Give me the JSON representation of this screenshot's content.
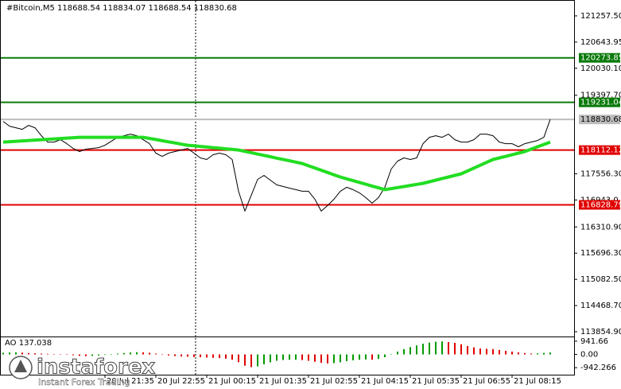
{
  "chart_data": {
    "type": "line",
    "title": "#Bitcoin,M5  118688.54 118834.07 118688.54 118830.68",
    "categories": [
      null,
      null,
      null,
      null,
      null,
      null,
      null,
      null,
      null,
      null,
      null,
      null,
      null,
      null,
      null,
      null,
      "20 Jul 21:35",
      null,
      null,
      null,
      null,
      null,
      null,
      null,
      "20 Jul 22:55",
      null,
      null,
      null,
      null,
      null,
      null,
      null,
      "21 Jul 00:15",
      null,
      null,
      null,
      null,
      null,
      null,
      null,
      "21 Jul 01:35",
      null,
      null,
      null,
      null,
      null,
      null,
      null,
      "21 Jul 02:55",
      null,
      null,
      null,
      null,
      null,
      null,
      null,
      "21 Jul 04:15",
      null,
      null,
      null,
      null,
      null,
      null,
      null,
      "21 Jul 05:35",
      null,
      null,
      null,
      null,
      null,
      null,
      null,
      "21 Jul 06:55",
      null,
      null,
      null,
      null,
      null,
      null,
      null,
      "21 Jul 08:15",
      null,
      null,
      null,
      null,
      null,
      null
    ],
    "series": [
      {
        "color": "#000000",
        "values": [
          118784,
          118672,
          118635,
          118598,
          118691,
          118635,
          118449,
          118300,
          118300,
          118356,
          118263,
          118151,
          118077,
          118133,
          118151,
          118170,
          118226,
          118319,
          118412,
          118449,
          118486,
          118449,
          118356,
          118263,
          118040,
          117965,
          118040,
          118077,
          118114,
          118151,
          118040,
          117928,
          117891,
          118003,
          118040,
          118003,
          117891,
          117147,
          116682,
          117054,
          117426,
          117519,
          117407,
          117296,
          117259,
          117221,
          117184,
          117147,
          117147,
          116961,
          116682,
          116812,
          116961,
          117147,
          117240,
          117184,
          117110,
          116998,
          116868,
          116998,
          117240,
          117668,
          117854,
          117928,
          117891,
          117928,
          118263,
          118412,
          118449,
          118412,
          118486,
          118356,
          118300,
          118300,
          118356,
          118486,
          118486,
          118449,
          118300,
          118263,
          118263,
          118189,
          118263,
          118300,
          118337,
          118412,
          118830.68
        ]
      },
      {
        "color": "#22dd22",
        "values": [
          118300,
          118309,
          118319,
          118328,
          118337,
          118347,
          118356,
          118365,
          118375,
          118384,
          118393,
          118403,
          118412,
          118412,
          118412,
          118412,
          118412,
          118412,
          118412,
          118412,
          118412,
          118412,
          118412,
          118385,
          118359,
          118332,
          118305,
          118279,
          118252,
          118226,
          118212,
          118198,
          118184,
          118170,
          118156,
          118142,
          118128,
          118114,
          118082,
          118051,
          118019,
          117988,
          117956,
          117924,
          117893,
          117861,
          117830,
          117798,
          117745,
          117692,
          117639,
          117587,
          117534,
          117481,
          117439,
          117396,
          117354,
          117312,
          117269,
          117227,
          117184,
          117209,
          117234,
          117258,
          117283,
          117308,
          117333,
          117370,
          117407,
          117445,
          117482,
          117519,
          117556,
          117623,
          117690,
          117757,
          117824,
          117891,
          117928,
          117965,
          118003,
          118040,
          118077,
          118133,
          118189,
          118244,
          118300
        ]
      }
    ],
    "ylim": [
      113743,
      121611
    ],
    "yticks": [
      {
        "value": 121257.5,
        "label": "121257.50"
      },
      {
        "value": 120643.95,
        "label": "120643.95"
      },
      {
        "value": 120030.1,
        "label": "120030.10"
      },
      {
        "value": 119397.7,
        "label": "119397.70"
      },
      {
        "value": 117556.3,
        "label": "117556.30"
      },
      {
        "value": 116943,
        "label": "116943.0"
      },
      {
        "value": 116310.9,
        "label": "116310.90"
      },
      {
        "value": 115696.3,
        "label": "115696.30"
      },
      {
        "value": 115082.5,
        "label": "115082.50"
      },
      {
        "value": 114468.7,
        "label": "114468.70"
      },
      {
        "value": 113854.9,
        "label": "113854.90"
      }
    ],
    "levels": [
      {
        "value": 120273.85,
        "color": "#0a7a0a"
      },
      {
        "value": 119231.04,
        "color": "#0a7a0a"
      },
      {
        "value": 118830.68,
        "color": "#bdbdbd"
      },
      {
        "value": 118112.12,
        "color": "#e00000"
      },
      {
        "value": 116828.79,
        "color": "#e00000"
      }
    ],
    "indicator": {
      "type": "bar",
      "title": "AO 137.038",
      "values": [
        120,
        140,
        150,
        130,
        100,
        80,
        60,
        40,
        20,
        10,
        -20,
        -60,
        -100,
        -120,
        -100,
        -80,
        -40,
        0,
        60,
        100,
        140,
        160,
        150,
        120,
        60,
        -20,
        -80,
        -120,
        -150,
        -160,
        -180,
        -200,
        -220,
        -240,
        -260,
        -300,
        -380,
        -550,
        -800,
        -900,
        -850,
        -700,
        -560,
        -450,
        -400,
        -380,
        -380,
        -400,
        -450,
        -520,
        -600,
        -640,
        -620,
        -560,
        -480,
        -420,
        -380,
        -360,
        -380,
        -320,
        -200,
        0,
        200,
        380,
        520,
        640,
        760,
        840,
        900,
        920,
        880,
        820,
        720,
        600,
        500,
        420,
        400,
        380,
        320,
        250,
        200,
        150,
        100,
        60,
        80,
        110,
        137.038
      ],
      "ylim": [
        -1440,
        1218
      ],
      "yticks": [
        941.66,
        {
          "value": 0,
          "label": "0.00"
        },
        -942.266
      ],
      "up_color": "#009a00",
      "down_color": "#e00000"
    },
    "watermark": {
      "brand": "instaforex",
      "slogan": "Instant Forex Trading"
    }
  }
}
